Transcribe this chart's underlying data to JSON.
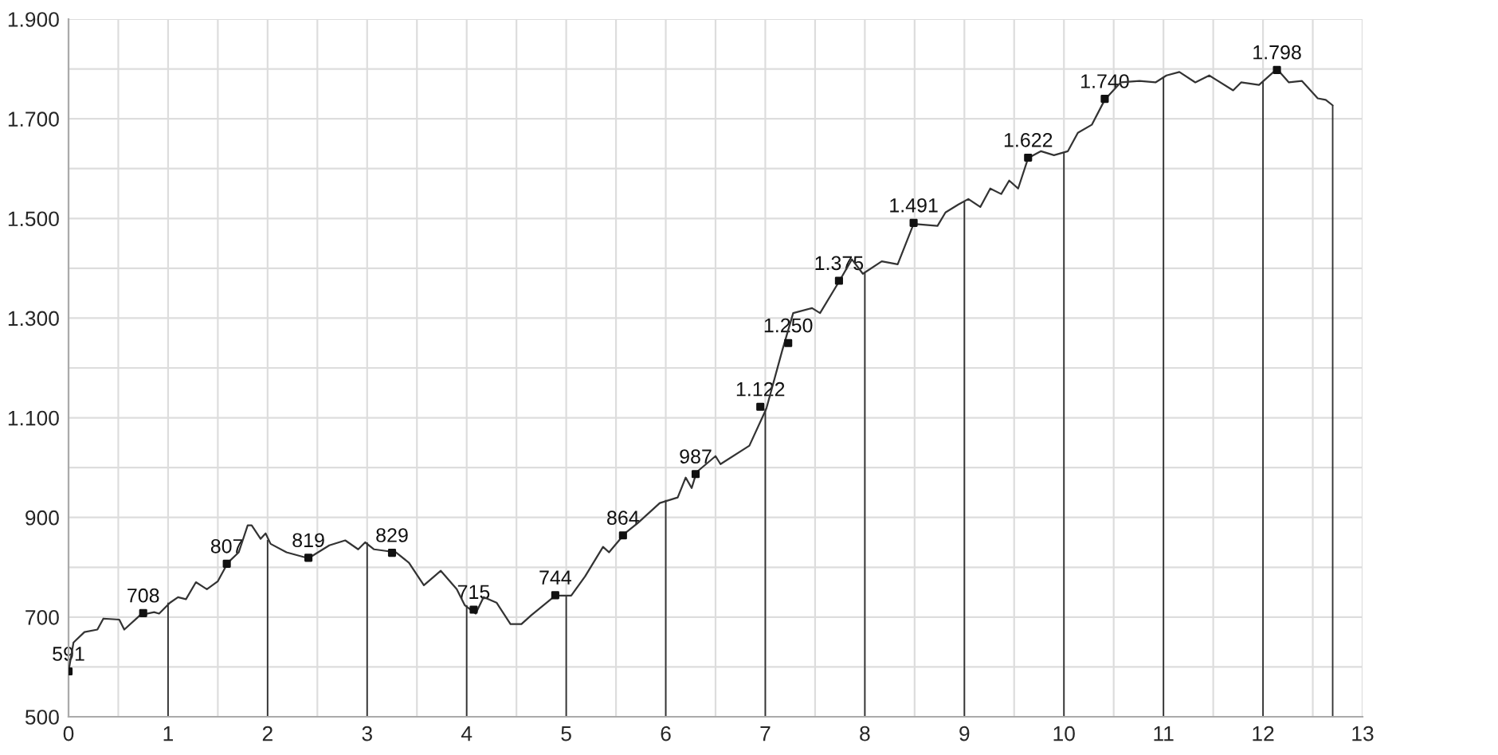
{
  "chart_data": {
    "type": "line",
    "xlim": [
      0,
      13
    ],
    "xticks": [
      0,
      {
        "value": 0.5,
        "label": null
      },
      1,
      {
        "value": 1.5,
        "label": null
      },
      2,
      {
        "value": 2.5,
        "label": null
      },
      3,
      {
        "value": 3.5,
        "label": null
      },
      4,
      {
        "value": 4.5,
        "label": null
      },
      5,
      {
        "value": 5.5,
        "label": null
      },
      6,
      {
        "value": 6.5,
        "label": null
      },
      7,
      {
        "value": 7.5,
        "label": null
      },
      8,
      {
        "value": 8.5,
        "label": null
      },
      9,
      {
        "value": 9.5,
        "label": null
      },
      10,
      {
        "value": 10.5,
        "label": null
      },
      11,
      {
        "value": 11.5,
        "label": null
      },
      12,
      {
        "value": 12.5,
        "label": null
      },
      13
    ],
    "ylim": [
      500,
      1900
    ],
    "yticks": [
      {
        "value": 500,
        "label": "500"
      },
      {
        "value": 600,
        "label": null
      },
      {
        "value": 700,
        "label": "700"
      },
      {
        "value": 800,
        "label": null
      },
      {
        "value": 900,
        "label": "900"
      },
      {
        "value": 1000,
        "label": null
      },
      {
        "value": 1100,
        "label": "1.100"
      },
      {
        "value": 1200,
        "label": null
      },
      {
        "value": 1300,
        "label": "1.300"
      },
      {
        "value": 1400,
        "label": null
      },
      {
        "value": 1500,
        "label": "1.500"
      },
      {
        "value": 1600,
        "label": null
      },
      {
        "value": 1700,
        "label": "1.700"
      },
      {
        "value": 1800,
        "label": null
      },
      {
        "value": 1900,
        "label": "1.900"
      }
    ],
    "grid": true,
    "series": [
      {
        "color": "#333333",
        "marker": "none",
        "line_style": "solid",
        "x": [
          0,
          0.05,
          0.16,
          0.29,
          0.35,
          0.51,
          0.56,
          0.72,
          0.86,
          0.91,
          1.02,
          1.1,
          1.18,
          1.28,
          1.39,
          1.5,
          1.6,
          1.71,
          1.8,
          1.84,
          1.93,
          1.98,
          2.03,
          2.19,
          2.41,
          2.62,
          2.78,
          2.91,
          2.98,
          3.07,
          3.29,
          3.42,
          3.57,
          3.74,
          3.9,
          3.98,
          4.09,
          4.17,
          4.3,
          4.44,
          4.55,
          4.65,
          4.89,
          5.05,
          5.19,
          5.37,
          5.43,
          5.59,
          5.72,
          5.94,
          6.12,
          6.2,
          6.26,
          6.31,
          6.5,
          6.55,
          6.84,
          7.01,
          7.17,
          7.28,
          7.47,
          7.55,
          7.74,
          7.87,
          7.98,
          8.17,
          8.33,
          8.49,
          8.73,
          8.81,
          8.94,
          9.04,
          9.16,
          9.26,
          9.37,
          9.45,
          9.54,
          9.64,
          9.77,
          9.9,
          10.04,
          10.14,
          10.28,
          10.41,
          10.57,
          10.76,
          10.92,
          11.03,
          11.16,
          11.32,
          11.46,
          11.7,
          11.78,
          11.96,
          12.14,
          12.26,
          12.39,
          12.55,
          12.63,
          12.7
        ],
        "values": [
          591,
          649,
          670,
          675,
          697,
          695,
          675,
          704,
          710,
          707,
          729,
          740,
          736,
          770,
          756,
          772,
          809,
          830,
          884,
          884,
          857,
          868,
          847,
          830,
          818,
          844,
          854,
          836,
          850,
          836,
          830,
          809,
          764,
          793,
          756,
          724,
          707,
          740,
          729,
          686,
          686,
          704,
          743,
          743,
          782,
          841,
          830,
          868,
          889,
          929,
          940,
          980,
          959,
          991,
          1023,
          1007,
          1044,
          1118,
          1235,
          1310,
          1320,
          1310,
          1373,
          1418,
          1389,
          1414,
          1408,
          1489,
          1485,
          1512,
          1528,
          1539,
          1523,
          1560,
          1549,
          1576,
          1560,
          1621,
          1635,
          1627,
          1635,
          1672,
          1688,
          1738,
          1773,
          1776,
          1773,
          1787,
          1794,
          1773,
          1787,
          1757,
          1773,
          1768,
          1800,
          1773,
          1776,
          1741,
          1738,
          1727
        ]
      },
      {
        "type": "bar",
        "color": "#333333",
        "x": [
          1,
          2,
          3,
          4,
          5,
          6,
          7,
          8,
          9,
          10,
          11,
          12,
          12.7
        ],
        "values": [
          729,
          855,
          850,
          724,
          743,
          935,
          1118,
          1390,
          1535,
          1632,
          1785,
          1775,
          1727
        ]
      },
      {
        "type": "scatter",
        "color": "#111111",
        "marker": "square",
        "x": [
          0,
          0.75,
          1.59,
          2.41,
          3.25,
          4.07,
          4.89,
          5.57,
          6.3,
          6.95,
          7.23,
          7.74,
          8.49,
          9.64,
          10.41,
          12.14
        ],
        "values": [
          591,
          708,
          807,
          819,
          829,
          715,
          744,
          864,
          987,
          1122,
          1250,
          1375,
          1491,
          1622,
          1740,
          1798
        ],
        "value_labels": [
          "591",
          "708",
          "807",
          "819",
          "829",
          "715",
          "744",
          "864",
          "987",
          "1.122",
          "1.250",
          "1.375",
          "1.491",
          "1.622",
          "1.740",
          "1.798"
        ]
      }
    ]
  }
}
